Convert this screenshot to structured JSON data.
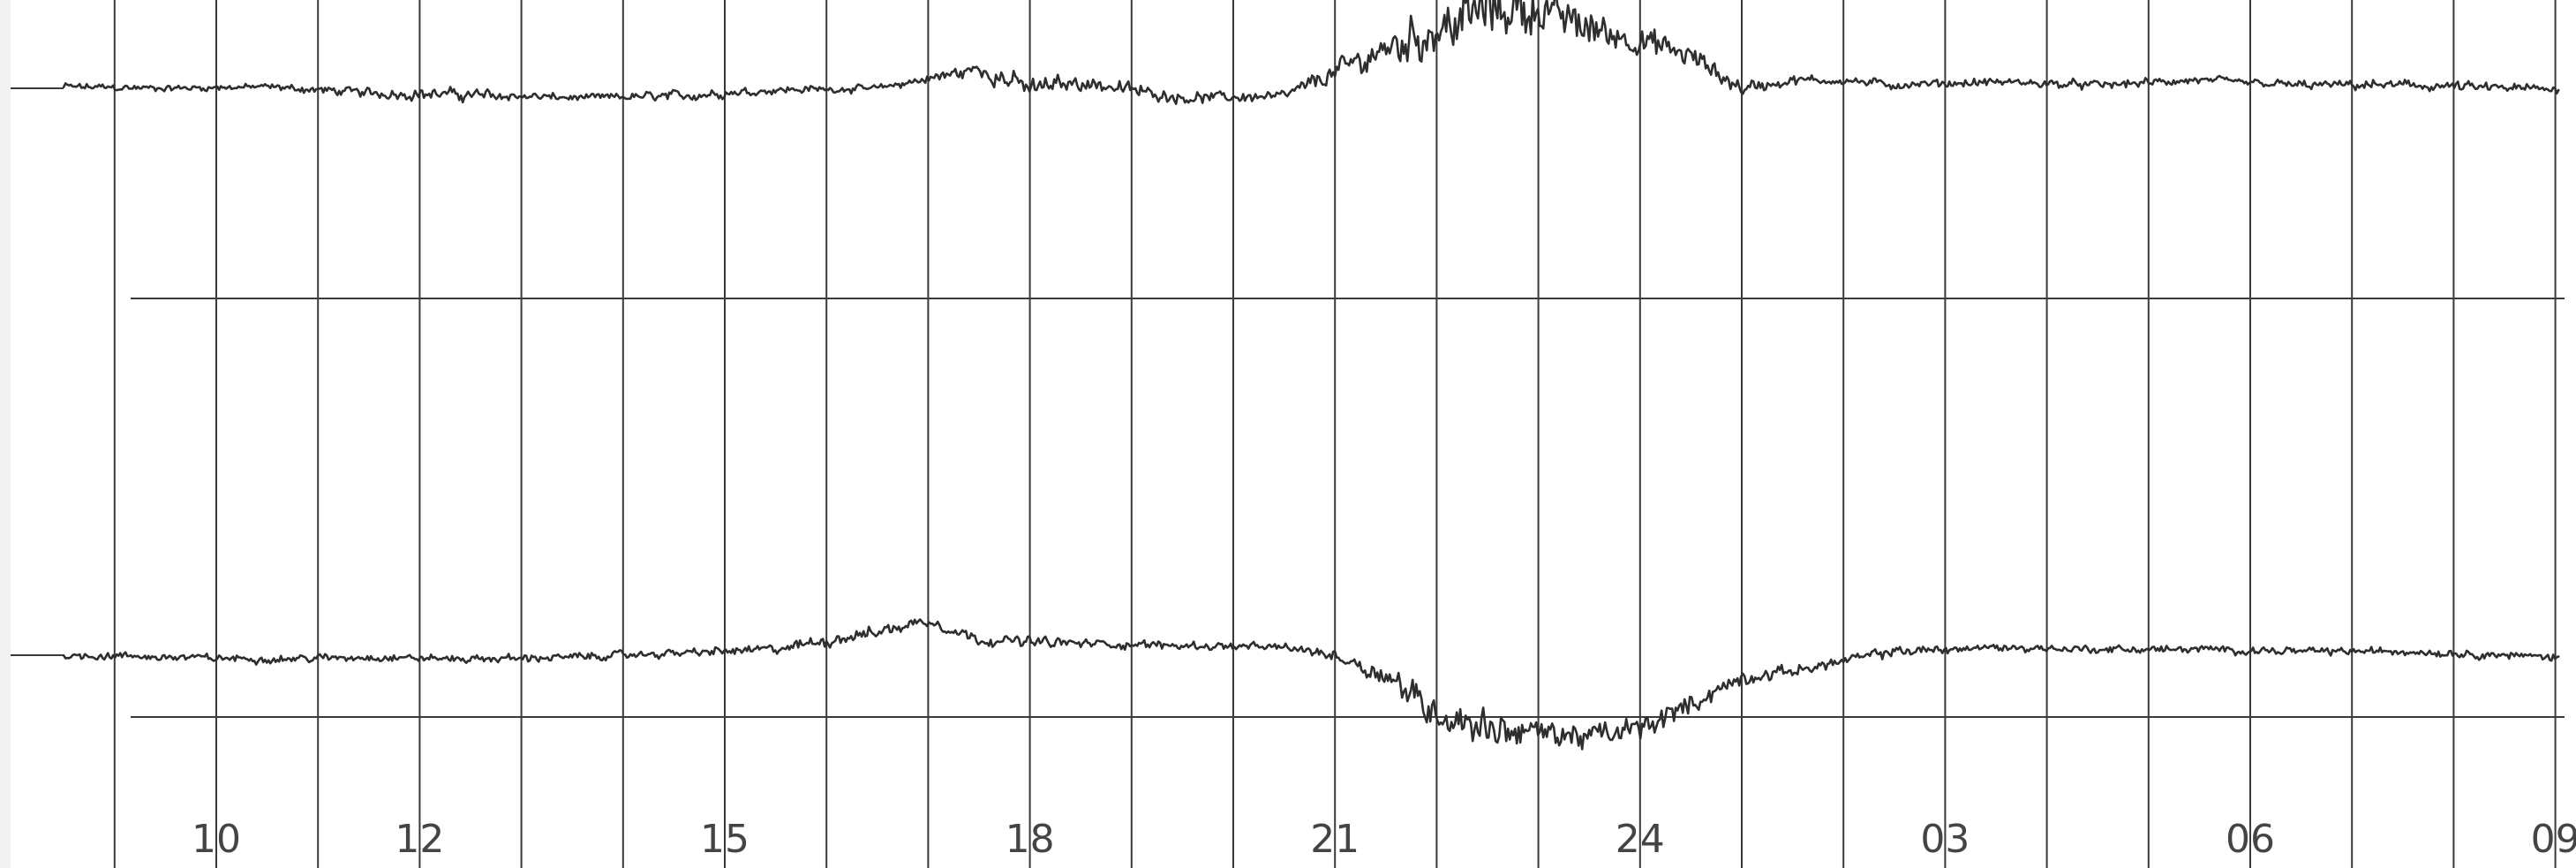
{
  "chart_data": {
    "type": "line",
    "title": "",
    "xlabel": "",
    "ylabel": "",
    "x_ticks": [
      "10",
      "12",
      "15",
      "18",
      "21",
      "24",
      "03",
      "06",
      "09"
    ],
    "x_ticks_hour": [
      10,
      12,
      15,
      18,
      21,
      24,
      27,
      30,
      33
    ],
    "xlim": [
      8.5,
      34
    ],
    "grid": true,
    "series": [
      {
        "hour": [
          8.5,
          9.5,
          10.5,
          11.5,
          12.5,
          13.5,
          14.5,
          15.5,
          16.5,
          17.5,
          18.0,
          18.5,
          19.5,
          20.5,
          21.0,
          21.5,
          22.0,
          22.5,
          23.0,
          23.5,
          24.0,
          24.5,
          25.0,
          25.5,
          26.0,
          26.5,
          27.5,
          28.5,
          29.5,
          30.5,
          31.5,
          32.5,
          33.5,
          34.0
        ],
        "level": [
          0.51,
          0.5,
          0.51,
          0.47,
          0.46,
          0.44,
          0.45,
          0.49,
          0.5,
          0.62,
          0.5,
          0.54,
          0.44,
          0.45,
          0.6,
          0.75,
          0.87,
          1.0,
          1.0,
          0.88,
          0.8,
          0.7,
          0.5,
          0.55,
          0.55,
          0.52,
          0.54,
          0.52,
          0.55,
          0.52,
          0.52,
          0.5,
          0.49,
          0.5
        ],
        "noise": [
          0.04,
          0.03,
          0.03,
          0.05,
          0.06,
          0.03,
          0.05,
          0.04,
          0.03,
          0.08,
          0.1,
          0.08,
          0.05,
          0.05,
          0.1,
          0.18,
          0.25,
          0.3,
          0.22,
          0.18,
          0.14,
          0.12,
          0.08,
          0.05,
          0.04,
          0.04,
          0.04,
          0.04,
          0.04,
          0.04,
          0.05,
          0.05,
          0.04,
          0.04
        ]
      },
      {
        "hour": [
          8.5,
          9.5,
          10.5,
          11.5,
          12.5,
          13.5,
          14.5,
          15.5,
          16.5,
          17.0,
          17.5,
          18.5,
          19.5,
          20.5,
          21.0,
          21.5,
          22.0,
          22.5,
          23.0,
          23.5,
          24.0,
          24.5,
          25.0,
          25.5,
          26.5,
          27.5,
          28.5,
          29.5,
          30.5,
          31.5,
          32.5,
          33.5,
          34.0
        ],
        "level": [
          0.5,
          0.49,
          0.48,
          0.49,
          0.48,
          0.49,
          0.51,
          0.53,
          0.62,
          0.68,
          0.58,
          0.56,
          0.55,
          0.54,
          0.5,
          0.4,
          0.2,
          0.13,
          0.1,
          0.08,
          0.12,
          0.25,
          0.38,
          0.42,
          0.52,
          0.54,
          0.53,
          0.53,
          0.52,
          0.52,
          0.5,
          0.48,
          0.48
        ],
        "noise": [
          0.03,
          0.03,
          0.03,
          0.03,
          0.03,
          0.03,
          0.03,
          0.04,
          0.05,
          0.05,
          0.04,
          0.04,
          0.03,
          0.03,
          0.05,
          0.1,
          0.14,
          0.14,
          0.12,
          0.1,
          0.1,
          0.08,
          0.06,
          0.04,
          0.04,
          0.03,
          0.03,
          0.03,
          0.03,
          0.03,
          0.03,
          0.03,
          0.03
        ]
      }
    ]
  },
  "colors": {
    "paper": "#ffffff",
    "grid": "#3a3a3a",
    "trace": "#2e2e2e",
    "label": "#444444"
  }
}
